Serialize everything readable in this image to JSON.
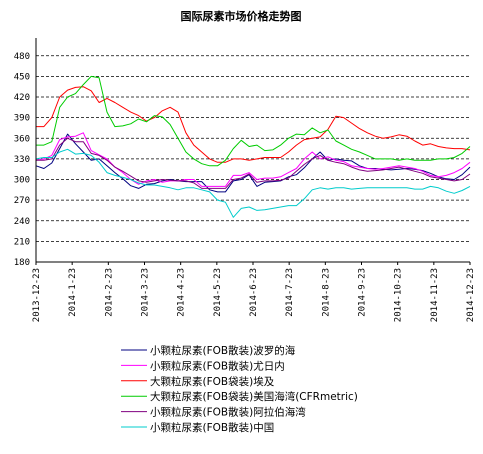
{
  "chart_data": {
    "type": "line",
    "title": "国际尿素市场价格走势图",
    "xlabel": "",
    "ylabel": "",
    "ylim": [
      180,
      500
    ],
    "yticks": [
      180,
      210,
      240,
      270,
      300,
      330,
      360,
      390,
      420,
      450,
      480
    ],
    "x_range": [
      "2013-12-23",
      "2014-12-23"
    ],
    "x_tick_labels": [
      "2013-12-23",
      "2014-1-23",
      "2014-2-23",
      "2014-3-23",
      "2014-4-23",
      "2014-5-23",
      "2014-6-23",
      "2014-7-23",
      "2014-8-23",
      "2014-9-23",
      "2014-10-23",
      "2014-11-23",
      "2014-12-23"
    ],
    "grid": "horizontal-dashed",
    "legend_position": "bottom",
    "series": [
      {
        "name": "小颗粒尿素(FOB散装)波罗的海",
        "color": "#000080",
        "values": [
          320,
          316,
          324,
          345,
          366,
          352,
          340,
          328,
          330,
          320,
          310,
          301,
          291,
          287,
          293,
          294,
          298,
          300,
          298,
          297,
          297,
          297,
          285,
          282,
          282,
          298,
          300,
          307,
          290,
          296,
          297,
          298,
          304,
          307,
          317,
          330,
          340,
          328,
          330,
          328,
          327,
          320,
          316,
          316,
          315,
          314,
          315,
          316,
          315,
          313,
          309,
          304,
          301,
          300,
          307,
          318
        ]
      },
      {
        "name": "小颗粒尿素(FOB散装)尤日内",
        "color": "#ff00ff",
        "values": [
          328,
          330,
          335,
          358,
          362,
          363,
          368,
          342,
          336,
          330,
          318,
          310,
          300,
          293,
          298,
          300,
          296,
          298,
          298,
          300,
          300,
          290,
          290,
          290,
          290,
          306,
          306,
          310,
          300,
          302,
          302,
          304,
          310,
          316,
          330,
          340,
          330,
          333,
          328,
          326,
          320,
          318,
          316,
          315,
          316,
          318,
          320,
          318,
          316,
          312,
          306,
          304,
          306,
          310,
          316,
          325
        ]
      },
      {
        "name": "大颗粒尿素(FOB袋装)埃及",
        "color": "#ff0000",
        "values": [
          377,
          377,
          390,
          420,
          430,
          434,
          435,
          429,
          412,
          418,
          412,
          405,
          398,
          393,
          385,
          390,
          400,
          405,
          398,
          368,
          350,
          340,
          330,
          325,
          325,
          330,
          330,
          328,
          330,
          332,
          332,
          332,
          340,
          350,
          358,
          360,
          362,
          373,
          392,
          390,
          382,
          374,
          368,
          363,
          360,
          362,
          365,
          363,
          356,
          350,
          352,
          348,
          346,
          345,
          345,
          343
        ]
      },
      {
        "name": "大颗粒尿素(FOB袋装)美国海湾(CFRmetric)",
        "color": "#00cc00",
        "values": [
          350,
          350,
          355,
          405,
          420,
          425,
          438,
          450,
          448,
          398,
          377,
          378,
          381,
          388,
          384,
          393,
          391,
          380,
          360,
          340,
          330,
          323,
          320,
          320,
          328,
          345,
          357,
          348,
          350,
          342,
          343,
          350,
          360,
          366,
          365,
          375,
          368,
          372,
          356,
          350,
          344,
          340,
          335,
          330,
          330,
          330,
          328,
          330,
          328,
          328,
          328,
          330,
          330,
          332,
          338,
          348
        ]
      },
      {
        "name": "小颗粒尿素(FOB散装)阿拉伯海湾",
        "color": "#800080",
        "values": [
          328,
          328,
          330,
          350,
          360,
          355,
          355,
          338,
          335,
          328,
          318,
          312,
          305,
          298,
          296,
          298,
          300,
          299,
          298,
          298,
          295,
          287,
          287,
          287,
          287,
          300,
          302,
          308,
          296,
          298,
          298,
          299,
          302,
          312,
          322,
          330,
          335,
          328,
          325,
          323,
          318,
          314,
          312,
          313,
          314,
          316,
          318,
          315,
          312,
          309,
          304,
          302,
          300,
          298,
          300,
          308
        ]
      },
      {
        "name": "小颗粒尿素(FOB散装)中国",
        "color": "#00cccc",
        "values": [
          330,
          332,
          332,
          340,
          344,
          337,
          338,
          335,
          325,
          310,
          306,
          303,
          300,
          295,
          292,
          292,
          290,
          288,
          285,
          288,
          288,
          285,
          282,
          270,
          267,
          245,
          258,
          260,
          255,
          256,
          258,
          260,
          262,
          262,
          272,
          285,
          288,
          286,
          288,
          288,
          286,
          287,
          288,
          288,
          288,
          288,
          288,
          288,
          286,
          286,
          290,
          288,
          283,
          280,
          284,
          290
        ]
      }
    ]
  }
}
